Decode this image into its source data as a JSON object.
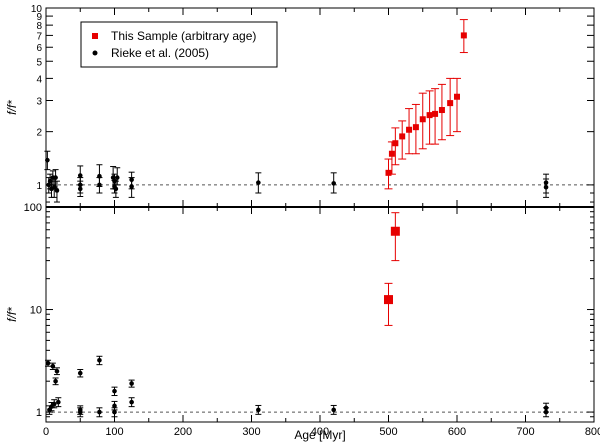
{
  "chart_data": [
    {
      "type": "scatter",
      "panel": "top",
      "ylabel": "f/f*",
      "yscale": "log",
      "ylim": [
        0.75,
        10
      ],
      "yticks": [
        1,
        2,
        3,
        4,
        5,
        6,
        7,
        8,
        9,
        10
      ],
      "ytick_labels": [
        "1",
        "2",
        "3",
        "4",
        "5",
        "6",
        "7",
        "8",
        "9",
        "10"
      ],
      "reference_line": 1,
      "legend": {
        "placement": "top-left",
        "entries": [
          "This Sample (arbitrary age)",
          "Rieke et al. (2005)"
        ]
      },
      "series": [
        {
          "name": "This Sample (arbitrary age)",
          "color": "#e60000",
          "marker": "square",
          "points": [
            {
              "x": 500,
              "y": 1.17,
              "lo": 0.95,
              "hi": 1.4
            },
            {
              "x": 505,
              "y": 1.5,
              "lo": 1.15,
              "hi": 1.75
            },
            {
              "x": 510,
              "y": 1.72,
              "lo": 1.3,
              "hi": 2.1
            },
            {
              "x": 520,
              "y": 1.88,
              "lo": 1.4,
              "hi": 2.3
            },
            {
              "x": 530,
              "y": 2.05,
              "lo": 1.5,
              "hi": 2.7
            },
            {
              "x": 540,
              "y": 2.12,
              "lo": 1.5,
              "hi": 2.85
            },
            {
              "x": 550,
              "y": 2.35,
              "lo": 1.6,
              "hi": 3.3
            },
            {
              "x": 560,
              "y": 2.48,
              "lo": 1.7,
              "hi": 3.4
            },
            {
              "x": 568,
              "y": 2.52,
              "lo": 1.7,
              "hi": 3.5
            },
            {
              "x": 578,
              "y": 2.65,
              "lo": 1.8,
              "hi": 3.7
            },
            {
              "x": 590,
              "y": 2.9,
              "lo": 1.9,
              "hi": 4.0
            },
            {
              "x": 600,
              "y": 3.15,
              "lo": 2.0,
              "hi": 4.0
            },
            {
              "x": 610,
              "y": 7.0,
              "lo": 5.6,
              "hi": 8.6
            }
          ]
        },
        {
          "name": "Rieke et al. (2005)",
          "color": "#000000",
          "marker": "circle",
          "points": [
            {
              "x": 2,
              "y": 1.38,
              "lo": 1.22,
              "hi": 1.55
            },
            {
              "x": 4,
              "y": 1.0,
              "lo": 0.9,
              "hi": 1.1
            },
            {
              "x": 6,
              "y": 1.05,
              "lo": 0.95,
              "hi": 1.15
            },
            {
              "x": 8,
              "y": 0.95,
              "lo": 0.85,
              "hi": 1.05
            },
            {
              "x": 10,
              "y": 1.1,
              "lo": 1.0,
              "hi": 1.2
            },
            {
              "x": 12,
              "y": 0.97,
              "lo": 0.85,
              "hi": 1.1
            },
            {
              "x": 14,
              "y": 1.1,
              "lo": 0.95,
              "hi": 1.22
            },
            {
              "x": 16,
              "y": 0.93,
              "lo": 0.8,
              "hi": 1.05
            },
            {
              "x": 50,
              "y": 1.13,
              "lo": 1.0,
              "hi": 1.28
            },
            {
              "x": 50,
              "y": 1.0,
              "lo": 0.9,
              "hi": 1.1
            },
            {
              "x": 50,
              "y": 0.95,
              "lo": 0.86,
              "hi": 1.05
            },
            {
              "x": 78,
              "y": 1.12,
              "lo": 0.98,
              "hi": 1.3
            },
            {
              "x": 78,
              "y": 1.0,
              "lo": 0.9,
              "hi": 1.1
            },
            {
              "x": 98,
              "y": 1.1,
              "lo": 0.95,
              "hi": 1.27
            },
            {
              "x": 100,
              "y": 1.05,
              "lo": 0.95,
              "hi": 1.15
            },
            {
              "x": 100,
              "y": 0.98,
              "lo": 0.9,
              "hi": 1.06
            },
            {
              "x": 102,
              "y": 0.95,
              "lo": 0.85,
              "hi": 1.05
            },
            {
              "x": 104,
              "y": 1.1,
              "lo": 1.0,
              "hi": 1.25
            },
            {
              "x": 125,
              "y": 1.07,
              "lo": 0.95,
              "hi": 1.18
            },
            {
              "x": 125,
              "y": 0.98,
              "lo": 0.85,
              "hi": 1.1
            },
            {
              "x": 310,
              "y": 1.03,
              "lo": 0.9,
              "hi": 1.17
            },
            {
              "x": 420,
              "y": 1.02,
              "lo": 0.9,
              "hi": 1.17
            },
            {
              "x": 730,
              "y": 1.03,
              "lo": 0.9,
              "hi": 1.15
            },
            {
              "x": 730,
              "y": 0.97,
              "lo": 0.85,
              "hi": 1.08
            }
          ]
        }
      ]
    },
    {
      "type": "scatter",
      "panel": "bottom",
      "xlabel": "Age [Myr]",
      "ylabel": "f/f*",
      "yscale": "log",
      "xlim": [
        0,
        800
      ],
      "ylim": [
        0.8,
        100
      ],
      "xticks": [
        0,
        100,
        200,
        300,
        400,
        500,
        600,
        700,
        800
      ],
      "xtick_labels": [
        "0",
        "100",
        "200",
        "300",
        "400",
        "500",
        "600",
        "700",
        "800"
      ],
      "yticks": [
        1,
        10,
        100
      ],
      "ytick_labels": [
        "1",
        "10",
        "100"
      ],
      "reference_line": 1,
      "series": [
        {
          "name": "This Sample (arbitrary age)",
          "color": "#e60000",
          "marker": "square",
          "points": [
            {
              "x": 500,
              "y": 12.5,
              "lo": 7.0,
              "hi": 18.0
            },
            {
              "x": 510,
              "y": 58.0,
              "lo": 30.0,
              "hi": 88.0
            }
          ]
        },
        {
          "name": "Rieke et al. (2005)",
          "color": "#000000",
          "marker": "circle",
          "points": [
            {
              "x": 3,
              "y": 3.0,
              "lo": 2.8,
              "hi": 3.2
            },
            {
              "x": 5,
              "y": 1.05,
              "lo": 0.95,
              "hi": 1.15
            },
            {
              "x": 8,
              "y": 1.13,
              "lo": 1.03,
              "hi": 1.24
            },
            {
              "x": 10,
              "y": 2.8,
              "lo": 2.6,
              "hi": 3.0
            },
            {
              "x": 12,
              "y": 1.2,
              "lo": 1.1,
              "hi": 1.32
            },
            {
              "x": 14,
              "y": 2.0,
              "lo": 1.85,
              "hi": 2.15
            },
            {
              "x": 16,
              "y": 2.5,
              "lo": 2.32,
              "hi": 2.7
            },
            {
              "x": 18,
              "y": 1.25,
              "lo": 1.13,
              "hi": 1.38
            },
            {
              "x": 50,
              "y": 2.4,
              "lo": 2.2,
              "hi": 2.6
            },
            {
              "x": 50,
              "y": 1.05,
              "lo": 0.95,
              "hi": 1.15
            },
            {
              "x": 50,
              "y": 1.0,
              "lo": 0.9,
              "hi": 1.1
            },
            {
              "x": 78,
              "y": 3.2,
              "lo": 2.9,
              "hi": 3.5
            },
            {
              "x": 78,
              "y": 1.0,
              "lo": 0.9,
              "hi": 1.1
            },
            {
              "x": 100,
              "y": 1.6,
              "lo": 1.45,
              "hi": 1.75
            },
            {
              "x": 100,
              "y": 1.15,
              "lo": 1.05,
              "hi": 1.27
            },
            {
              "x": 100,
              "y": 1.0,
              "lo": 0.9,
              "hi": 1.1
            },
            {
              "x": 125,
              "y": 1.9,
              "lo": 1.75,
              "hi": 2.05
            },
            {
              "x": 125,
              "y": 1.25,
              "lo": 1.13,
              "hi": 1.38
            },
            {
              "x": 310,
              "y": 1.05,
              "lo": 0.95,
              "hi": 1.16
            },
            {
              "x": 420,
              "y": 1.05,
              "lo": 0.95,
              "hi": 1.16
            },
            {
              "x": 730,
              "y": 1.1,
              "lo": 1.0,
              "hi": 1.22
            },
            {
              "x": 730,
              "y": 1.0,
              "lo": 0.9,
              "hi": 1.1
            }
          ]
        }
      ]
    }
  ]
}
